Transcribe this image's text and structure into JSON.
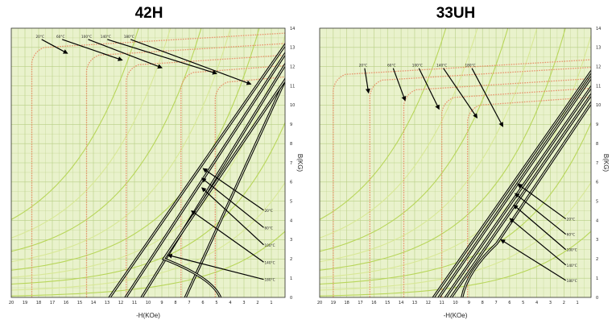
{
  "colors": {
    "background": "#e9f2cc",
    "grid": "#b8cf85",
    "bcurve_hot": "#b8d65a",
    "bcurve_cool": "#d8e896",
    "j_curve": "#e8956e",
    "demag": "#000000"
  },
  "chart_data": [
    {
      "type": "line",
      "title": "42H",
      "xlabel": "-H(KOe)",
      "ylabel": "B(KG)",
      "xlim": [
        -20,
        0
      ],
      "ylim": [
        0,
        14
      ],
      "x_ticks": [
        "20",
        "19",
        "18",
        "17",
        "16",
        "15",
        "14",
        "13",
        "12",
        "11",
        "10",
        "9",
        "8",
        "7",
        "6",
        "5",
        "4",
        "3",
        "2",
        "1"
      ],
      "y_ticks": [
        "0",
        "1",
        "2",
        "3",
        "4",
        "5",
        "6",
        "7",
        "8",
        "9",
        "10",
        "11",
        "12",
        "13",
        "14"
      ],
      "temperatures": [
        "20°C",
        "60°C",
        "100°C",
        "140°C",
        "180°C"
      ],
      "br": [
        13.1,
        12.7,
        12.2,
        11.8,
        11.3
      ],
      "hcj": [
        18.5,
        14.5,
        11.6,
        7.6,
        5.1
      ],
      "hcb": [
        12.5,
        11.3,
        10.1,
        6.8,
        4.6
      ],
      "knee_b": [
        6.5,
        6.0,
        5.5,
        4.3,
        2.0
      ],
      "j_labels_x": [
        -17.9,
        -16.4,
        -14.5,
        -13.1,
        -11.4
      ],
      "j_labels_y": [
        13.5,
        13.5,
        13.5,
        13.5,
        13.5
      ],
      "j_targets_b": [
        12.65,
        12.3,
        11.9,
        11.6,
        11.05
      ],
      "b_labels_x": [
        -1.5,
        -1.5,
        -1.5,
        -1.5,
        -1.5
      ],
      "b_labels_y": [
        4.45,
        3.55,
        2.65,
        1.75,
        0.85
      ]
    },
    {
      "type": "line",
      "title": "33UH",
      "xlabel": "-H(KOe)",
      "ylabel": "B(KG)",
      "xlim": [
        -20,
        0
      ],
      "ylim": [
        0,
        14
      ],
      "x_ticks": [
        "20",
        "19",
        "18",
        "17",
        "16",
        "15",
        "14",
        "13",
        "12",
        "11",
        "10",
        "9",
        "8",
        "7",
        "6",
        "5",
        "4",
        "3",
        "2",
        "1"
      ],
      "y_ticks": [
        "0",
        "1",
        "2",
        "3",
        "4",
        "5",
        "6",
        "7",
        "8",
        "9",
        "10",
        "11",
        "12",
        "13",
        "14"
      ],
      "temperatures": [
        "20°C",
        "60°C",
        "100°C",
        "140°C",
        "180°C"
      ],
      "br": [
        11.7,
        11.4,
        10.9,
        10.5,
        10.1
      ],
      "hcj": [
        19.0,
        16.3,
        13.8,
        11.0,
        9.1
      ],
      "hcb": [
        11.3,
        10.9,
        10.4,
        10.0,
        9.6
      ],
      "knee_b": [
        5.7,
        5.2,
        4.6,
        3.9,
        2.8
      ],
      "j_labels_x": [
        -16.8,
        -14.7,
        -12.8,
        -11.0,
        -8.9
      ],
      "j_labels_y": [
        12.0,
        12.0,
        12.0,
        12.0,
        12.0
      ],
      "j_targets_b": [
        10.6,
        10.2,
        9.75,
        9.3,
        8.85
      ],
      "b_labels_x": [
        -1.8,
        -1.8,
        -1.8,
        -1.8,
        -1.8
      ],
      "b_labels_y": [
        4.0,
        3.2,
        2.4,
        1.6,
        0.8
      ]
    }
  ]
}
